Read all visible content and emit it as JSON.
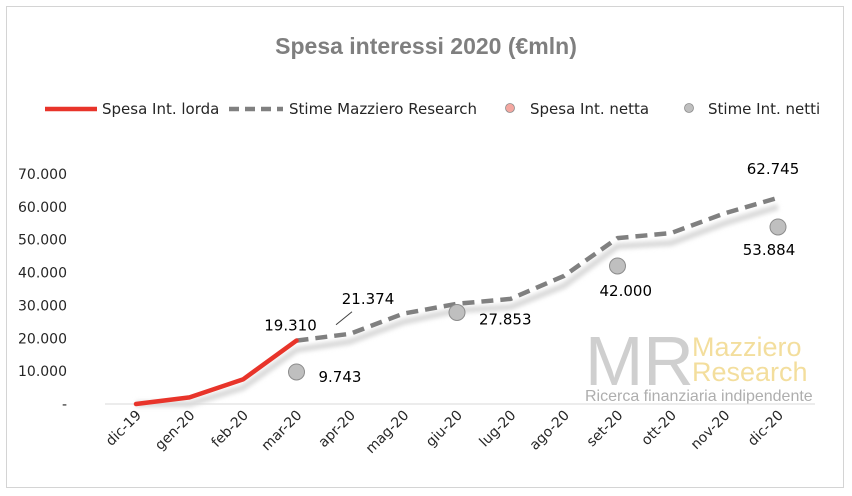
{
  "chart_data": {
    "type": "line",
    "title": "Spesa interessi 2020 (€mln)",
    "categories": [
      "dic-19",
      "gen-20",
      "feb-20",
      "mar-20",
      "apr-20",
      "mag-20",
      "giu-20",
      "lug-20",
      "ago-20",
      "set-20",
      "ott-20",
      "nov-20",
      "dic-20"
    ],
    "y_ticks": [
      "-",
      "10.000",
      "20.000",
      "30.000",
      "40.000",
      "50.000",
      "60.000",
      "70.000"
    ],
    "ylim": [
      0,
      70000
    ],
    "grid": false,
    "legend_position": "top",
    "series": [
      {
        "name": "Spesa Int. lorda",
        "style": "solid",
        "color": "#e8342a",
        "values": [
          0,
          2000,
          7500,
          19310,
          null,
          null,
          null,
          null,
          null,
          null,
          null,
          null,
          null
        ]
      },
      {
        "name": "Stime Mazziero Research",
        "style": "dashed",
        "color": "#808080",
        "values": [
          null,
          null,
          null,
          19310,
          21374,
          27500,
          30500,
          32000,
          39000,
          50500,
          52000,
          58000,
          62745
        ]
      },
      {
        "name": "Spesa Int. netta",
        "style": "shadow",
        "color": "#d9d9d9",
        "values": [
          0,
          0,
          5000,
          16500,
          19000,
          25000,
          28500,
          29500,
          36000,
          48000,
          49000,
          55000,
          60000
        ]
      },
      {
        "name": "Stime Int. netti",
        "style": "marker",
        "color": "#bfbfbf",
        "points": [
          {
            "x": "mar-20",
            "y": 9743
          },
          {
            "x": "giu-20",
            "y": 27853
          },
          {
            "x": "set-20",
            "y": 42000
          },
          {
            "x": "dic-20",
            "y": 53884
          }
        ]
      }
    ],
    "legend": [
      {
        "name": "Spesa Int. lorda",
        "marker": "line",
        "color": "#e8342a"
      },
      {
        "name": "Stime Mazziero Research",
        "marker": "dash",
        "color": "#808080"
      },
      {
        "name": "Spesa Int. netta",
        "marker": "dot",
        "color": "#f4a7a0"
      },
      {
        "name": "Stime Int. netti",
        "marker": "dot",
        "color": "#bfbfbf"
      }
    ],
    "data_labels": [
      {
        "text": "19.310",
        "x": "mar-20",
        "y": 19310
      },
      {
        "text": "21.374",
        "x": "apr-20",
        "y": 21374
      },
      {
        "text": "9.743",
        "x": "mar-20",
        "y": 9743
      },
      {
        "text": "27.853",
        "x": "giu-20",
        "y": 27853
      },
      {
        "text": "42.000",
        "x": "set-20",
        "y": 42000
      },
      {
        "text": "62.745",
        "x": "dic-20",
        "y": 62745
      },
      {
        "text": "53.884",
        "x": "dic-20",
        "y": 53884
      }
    ]
  },
  "watermark": {
    "logo": "MR",
    "name_line1": "Mazziero",
    "name_line2": "Research",
    "tagline": "Ricerca finanziaria indipendente"
  }
}
